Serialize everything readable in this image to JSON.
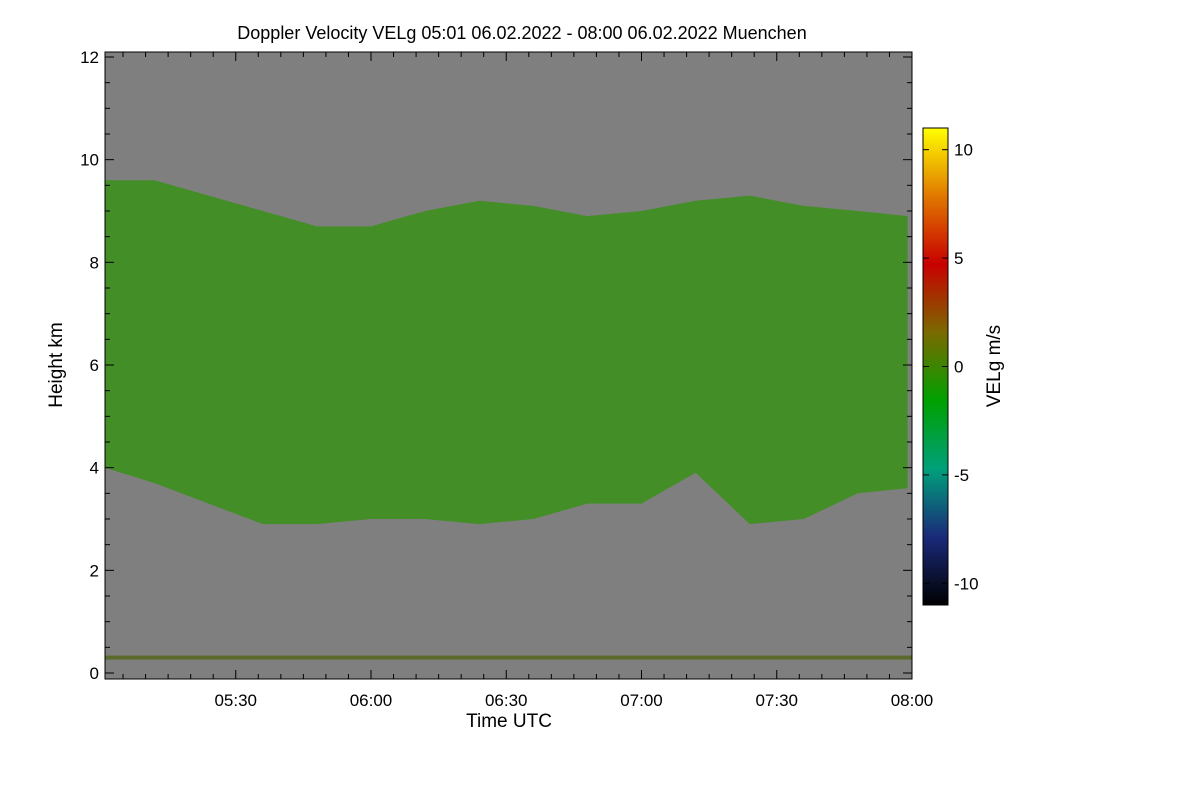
{
  "chart_data": {
    "type": "heatmap",
    "title": "Doppler Velocity VELg   05:01 06.02.2022 - 08:00 06.02.2022 Muenchen",
    "xlabel": "Time UTC",
    "ylabel": "Height km",
    "xlim": [
      "05:01",
      "08:00"
    ],
    "ylim": [
      0,
      12
    ],
    "x_ticks": [
      "05:30",
      "06:00",
      "06:30",
      "07:00",
      "07:30",
      "08:00"
    ],
    "y_ticks": [
      "0",
      "2",
      "4",
      "6",
      "8",
      "10",
      "12"
    ],
    "colorbar": {
      "label": "VELg m/s",
      "range": [
        -11,
        11
      ],
      "ticks": [
        "10",
        "5",
        "0",
        "-5",
        "-10"
      ],
      "tick_values": [
        10,
        5,
        0,
        -5,
        -10
      ],
      "colors": [
        "#000000",
        "#1a2a7a",
        "#00a07a",
        "#00a000",
        "#7a6a00",
        "#c80000",
        "#e07800",
        "#ffff00"
      ]
    },
    "background_color": "#7f7f7f",
    "echo_color": "#3f8f20",
    "cloud_layer": {
      "time_minutes": [
        1,
        12,
        24,
        36,
        48,
        60,
        72,
        84,
        96,
        108,
        120,
        132,
        144,
        156,
        168,
        179
      ],
      "top_km": [
        9.6,
        9.6,
        9.3,
        9.0,
        8.7,
        8.7,
        9.0,
        9.2,
        9.1,
        8.9,
        9.0,
        9.2,
        9.3,
        9.1,
        9.0,
        8.9
      ],
      "base_km": [
        4.0,
        3.7,
        3.3,
        2.9,
        2.9,
        3.0,
        3.0,
        2.9,
        3.0,
        3.3,
        3.3,
        3.9,
        2.9,
        3.0,
        3.5,
        3.6
      ]
    },
    "ground_clutter_km": 0.3
  }
}
